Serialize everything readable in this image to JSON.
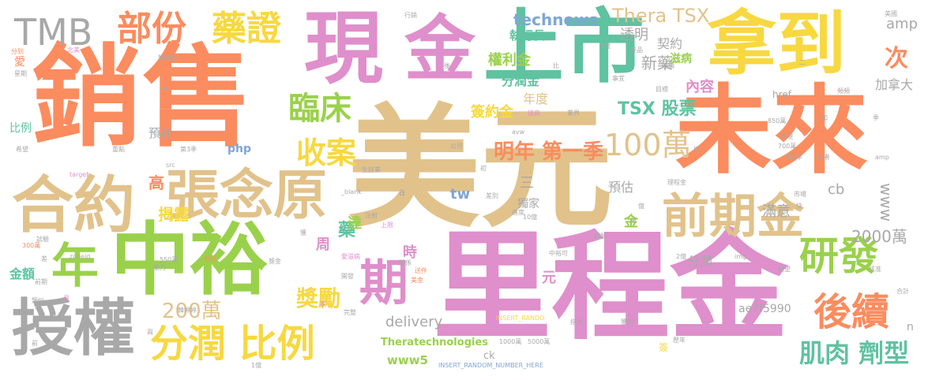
{
  "words": [
    {
      "text": "美元",
      "color": "#e2c28b"
    },
    {
      "text": "里程金",
      "color": "#df8fcb"
    },
    {
      "text": "銷售",
      "color": "#fb8c5f"
    },
    {
      "text": "未來",
      "color": "#fb8c5f"
    },
    {
      "text": "中裕",
      "color": "#9ad14b"
    },
    {
      "text": "拿到",
      "color": "#f7d841"
    },
    {
      "text": "金",
      "color": "#df8fcb"
    },
    {
      "text": "上市",
      "color": "#5fc2a1"
    },
    {
      "text": "現",
      "color": "#df8fcb"
    },
    {
      "text": "授權",
      "color": "#a8a8a8"
    },
    {
      "text": "合約",
      "color": "#e2c28b"
    },
    {
      "text": "張念原",
      "color": "#e2c28b"
    },
    {
      "text": "前期金",
      "color": "#e2c28b"
    },
    {
      "text": "TMB",
      "color": "#a8a8a8"
    },
    {
      "text": "部份",
      "color": "#fb8c5f"
    },
    {
      "text": "藥證",
      "color": "#f7d841"
    },
    {
      "text": "分潤 比例",
      "color": "#f7d841"
    },
    {
      "text": "年",
      "color": "#9ad14b"
    },
    {
      "text": "期",
      "color": "#df8fcb"
    },
    {
      "text": "研發",
      "color": "#9ad14b"
    },
    {
      "text": "後續",
      "color": "#fb8c5f"
    },
    {
      "text": "臨床",
      "color": "#9ad14b"
    },
    {
      "text": "收案",
      "color": "#f7d841"
    },
    {
      "text": "100萬",
      "color": "#e2c28b"
    },
    {
      "text": "明年 第一季",
      "color": "#fb8c5f"
    },
    {
      "text": "肌肉 劑型",
      "color": "#5fc2a1"
    },
    {
      "text": "200萬",
      "color": "#e2c28b"
    },
    {
      "text": "獎勵",
      "color": "#f7d841"
    },
    {
      "text": "Thera TSX",
      "color": "#e2c28b"
    },
    {
      "text": "technews",
      "color": "#7fa6d6"
    },
    {
      "text": "TSX 股票",
      "color": "#5fc2a1"
    },
    {
      "text": "權利金",
      "color": "#9ad14b"
    },
    {
      "text": "分潤金",
      "color": "#5fc2a1"
    },
    {
      "text": "簽約金",
      "color": "#f7d841"
    },
    {
      "text": "執行長",
      "color": "#5fc2a1"
    },
    {
      "text": "透明",
      "color": "#a8a8a8"
    },
    {
      "text": "新藥",
      "color": "#a8a8a8"
    },
    {
      "text": "次",
      "color": "#fb8c5f"
    },
    {
      "text": "amp",
      "color": "#a8a8a8"
    },
    {
      "text": "契約",
      "color": "#a8a8a8"
    },
    {
      "text": "滋病",
      "color": "#9ad14b"
    },
    {
      "text": "內容",
      "color": "#df8fcb"
    },
    {
      "text": "加拿大",
      "color": "#a8a8a8"
    },
    {
      "text": "年度",
      "color": "#e2c28b"
    },
    {
      "text": "href",
      "color": "#a8a8a8"
    },
    {
      "text": "比例",
      "color": "#5fc2a1"
    },
    {
      "text": "預計",
      "color": "#a8a8a8"
    },
    {
      "text": "php",
      "color": "#7fa6d6"
    },
    {
      "text": "高",
      "color": "#fb8c5f"
    },
    {
      "text": "揭露",
      "color": "#f7d841"
    },
    {
      "text": "金額",
      "color": "#5fc2a1"
    },
    {
      "text": "藥",
      "color": "#5fc2a1"
    },
    {
      "text": "周",
      "color": "#df8fcb"
    },
    {
      "text": "時",
      "color": "#df8fcb"
    },
    {
      "text": "達",
      "color": "#9ad14b"
    },
    {
      "text": "三",
      "color": "#a8a8a8"
    },
    {
      "text": "tw",
      "color": "#7fa6d6"
    },
    {
      "text": "獨家",
      "color": "#a8a8a8"
    },
    {
      "text": "預估",
      "color": "#a8a8a8"
    },
    {
      "text": "cb",
      "color": "#a8a8a8"
    },
    {
      "text": "www",
      "color": "#a8a8a8"
    },
    {
      "text": "2000萬",
      "color": "#a8a8a8"
    },
    {
      "text": "滿意",
      "color": "#a8a8a8"
    },
    {
      "text": "分潤",
      "color": "#a8a8a8"
    },
    {
      "text": "金",
      "color": "#9ad14b"
    },
    {
      "text": "delivery",
      "color": "#a8a8a8"
    },
    {
      "text": "ae7f5990",
      "color": "#a8a8a8"
    },
    {
      "text": "www5",
      "color": "#9ad14b"
    },
    {
      "text": "Theratechnologies",
      "color": "#9ad14b"
    },
    {
      "text": "元",
      "color": "#df8fcb"
    },
    {
      "text": "ck",
      "color": "#a8a8a8"
    },
    {
      "text": "n",
      "color": "#a8a8a8"
    },
    {
      "text": "INSERT_RANDOM_NUMBER_HERE",
      "color": "#7fa6d6"
    },
    {
      "text": "a",
      "color": "#a8a8a8"
    },
    {
      "text": "行銷",
      "color": "#a8a8a8"
    },
    {
      "text": "美國",
      "color": "#a8a8a8"
    },
    {
      "text": "5億",
      "color": "#a8a8a8"
    },
    {
      "text": "產品",
      "color": "#a8a8a8"
    },
    {
      "text": "連續",
      "color": "#a8a8a8"
    },
    {
      "text": "二",
      "color": "#a8a8a8"
    },
    {
      "text": "事宜",
      "color": "#a8a8a8"
    },
    {
      "text": "業界",
      "color": "#a8a8a8"
    },
    {
      "text": "目標",
      "color": "#a8a8a8"
    },
    {
      "text": "協商",
      "color": "#df8fcb"
    },
    {
      "text": "頻頻",
      "color": "#a8a8a8"
    },
    {
      "text": "4000萬",
      "color": "#fb8c5f"
    },
    {
      "text": "850萬",
      "color": "#a8a8a8"
    },
    {
      "text": "加",
      "color": "#a8a8a8"
    },
    {
      "text": "季",
      "color": "#a8a8a8"
    },
    {
      "text": "表現",
      "color": "#a8a8a8"
    },
    {
      "text": "底",
      "color": "#a8a8a8"
    },
    {
      "text": "700萬",
      "color": "#a8a8a8"
    },
    {
      "text": "第4季",
      "color": "#a8a8a8"
    },
    {
      "text": "記者",
      "color": "#a8a8a8"
    },
    {
      "text": "amp",
      "color": "#a8a8a8"
    },
    {
      "text": "市場",
      "color": "#a8a8a8"
    },
    {
      "text": "快",
      "color": "#a8a8a8"
    },
    {
      "text": "億",
      "color": "#a8a8a8"
    },
    {
      "text": "更",
      "color": "#a8a8a8"
    },
    {
      "text": "理程金",
      "color": "#a8a8a8"
    },
    {
      "text": "img",
      "color": "#a8a8a8"
    },
    {
      "text": "2億",
      "color": "#a8a8a8"
    },
    {
      "text": "展望",
      "color": "#a8a8a8"
    },
    {
      "text": "核准",
      "color": "#a8a8a8"
    },
    {
      "text": "合計",
      "color": "#a8a8a8"
    },
    {
      "text": "靜脈",
      "color": "#a8a8a8"
    },
    {
      "text": "指出",
      "color": "#a8a8a8"
    },
    {
      "text": "歷年",
      "color": "#a8a8a8"
    },
    {
      "text": "獲利",
      "color": "#a8a8a8"
    },
    {
      "text": "中裕可",
      "color": "#a8a8a8"
    },
    {
      "text": "進度",
      "color": "#a8a8a8"
    },
    {
      "text": "10億",
      "color": "#a8a8a8"
    },
    {
      "text": "上限",
      "color": "#df8fcb"
    },
    {
      "text": "注射",
      "color": "#a8a8a8"
    },
    {
      "text": "差別",
      "color": "#a8a8a8"
    },
    {
      "text": "生技業",
      "color": "#a8a8a8"
    },
    {
      "text": "公司",
      "color": "#a8a8a8"
    },
    {
      "text": "avw",
      "color": "#a8a8a8"
    },
    {
      "text": "第3季",
      "color": "#a8a8a8"
    },
    {
      "text": "重點",
      "color": "#a8a8a8"
    },
    {
      "text": "src",
      "color": "#a8a8a8"
    },
    {
      "text": "希望",
      "color": "#a8a8a8"
    },
    {
      "text": "target",
      "color": "#df8fcb"
    },
    {
      "text": "_blank",
      "color": "#a8a8a8"
    },
    {
      "text": "獲",
      "color": "#a8a8a8"
    },
    {
      "text": "愛滋病",
      "color": "#df8fcb"
    },
    {
      "text": "關係",
      "color": "#a8a8a8"
    },
    {
      "text": "送件",
      "color": "#fb8c5f"
    },
    {
      "text": "美金",
      "color": "#fb8c5f"
    },
    {
      "text": "開發",
      "color": "#a8a8a8"
    },
    {
      "text": "家",
      "color": "#df8fcb"
    },
    {
      "text": "完整",
      "color": "#a8a8a8"
    },
    {
      "text": "INSERT_RANDO",
      "color": "#f7d841"
    },
    {
      "text": "1000萬",
      "color": "#a8a8a8"
    },
    {
      "text": "5000萬",
      "color": "#a8a8a8"
    },
    {
      "text": "兩",
      "color": "#a8a8a8"
    },
    {
      "text": "簽",
      "color": "#f7d841"
    },
    {
      "text": "韓婷婷",
      "color": "#a8a8a8"
    },
    {
      "text": "包括",
      "color": "#fb8c5f"
    },
    {
      "text": "能力",
      "color": "#a8a8a8"
    },
    {
      "text": "550萬",
      "color": "#a8a8a8"
    },
    {
      "text": "zoneid",
      "color": "#a8a8a8"
    },
    {
      "text": "試驗",
      "color": "#a8a8a8"
    },
    {
      "text": "300萬",
      "color": "#fb8c5f"
    },
    {
      "text": "差",
      "color": "#a8a8a8"
    },
    {
      "text": "前期",
      "color": "#a8a8a8"
    },
    {
      "text": "月",
      "color": "#df8fcb"
    },
    {
      "text": "類似",
      "color": "#a8a8a8"
    },
    {
      "text": "前",
      "color": "#a8a8a8"
    },
    {
      "text": "1億",
      "color": "#a8a8a8"
    },
    {
      "text": "分到",
      "color": "#fb8c5f"
    },
    {
      "text": "北美",
      "color": "#df8fcb"
    },
    {
      "text": "獎勵金",
      "color": "#a8a8a8"
    },
    {
      "text": "愛",
      "color": "#fb8c5f"
    },
    {
      "text": "星期",
      "color": "#a8a8a8"
    },
    {
      "text": "外",
      "color": "#a8a8a8"
    },
    {
      "text": "初",
      "color": "#a8a8a8"
    },
    {
      "text": "後",
      "color": "#a8a8a8"
    },
    {
      "text": "比",
      "color": "#a8a8a8"
    },
    {
      "text": "獎金",
      "color": "#a8a8a8"
    }
  ]
}
